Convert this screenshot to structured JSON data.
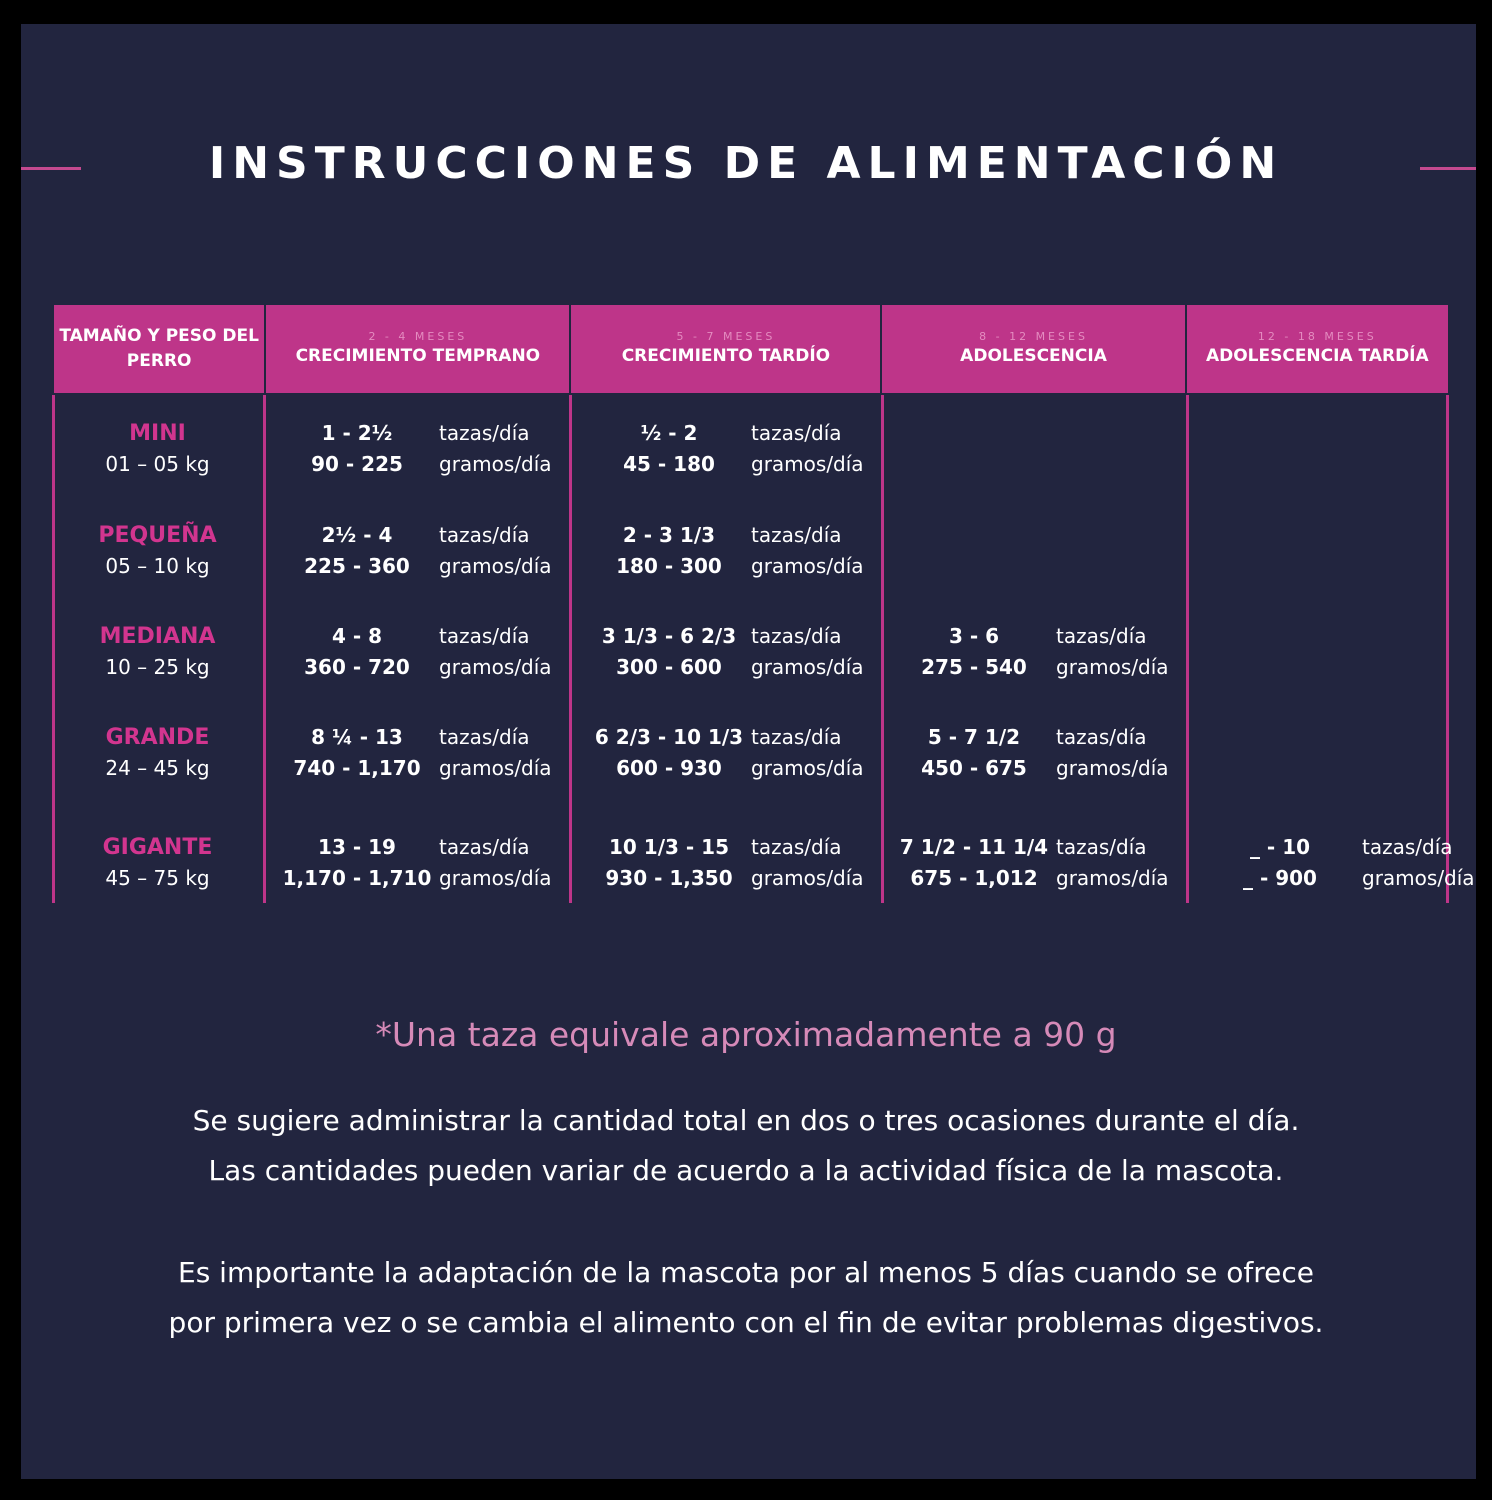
{
  "title": "INSTRUCCIONES DE ALIMENTACIÓN",
  "headers": [
    {
      "sub": "",
      "label": "TAMAÑO Y PESO DEL PERRO"
    },
    {
      "sub": "2 - 4 MESES",
      "label": "CRECIMIENTO TEMPRANO"
    },
    {
      "sub": "5 - 7 MESES",
      "label": "CRECIMIENTO TARDÍO"
    },
    {
      "sub": "8 - 12 MESES",
      "label": "ADOLESCENCIA"
    },
    {
      "sub": "12 - 18 MESES",
      "label": "ADOLESCENCIA TARDÍA"
    }
  ],
  "units": {
    "cups": "tazas/día",
    "grams": "gramos/día"
  },
  "rows": [
    {
      "name": "MINI",
      "weight": "01 – 05 kg",
      "cells": [
        {
          "cups": "1 - 2½",
          "grams": "90 - 225"
        },
        {
          "cups": "½ - 2",
          "grams": "45 - 180"
        },
        null,
        null
      ]
    },
    {
      "name": "PEQUEÑA",
      "weight": "05 – 10 kg",
      "cells": [
        {
          "cups": "2½ - 4",
          "grams": "225 - 360"
        },
        {
          "cups": "2 - 3 1/3",
          "grams": "180 - 300"
        },
        null,
        null
      ]
    },
    {
      "name": "MEDIANA",
      "weight": "10 – 25 kg",
      "cells": [
        {
          "cups": "4 - 8",
          "grams": "360 - 720"
        },
        {
          "cups": "3 1/3 - 6 2/3",
          "grams": "300 - 600"
        },
        {
          "cups": "3 - 6",
          "grams": "275 - 540"
        },
        null
      ]
    },
    {
      "name": "GRANDE",
      "weight": "24 – 45 kg",
      "cells": [
        {
          "cups": "8 ¼ - 13",
          "grams": "740 - 1,170"
        },
        {
          "cups": "6 2/3 - 10 1/3",
          "grams": "600 - 930"
        },
        {
          "cups": "5 - 7 1/2",
          "grams": "450 - 675"
        },
        null
      ]
    },
    {
      "name": "GIGANTE",
      "weight": "45 – 75 kg",
      "cells": [
        {
          "cups": "13 - 19",
          "grams": "1,170 - 1,710"
        },
        {
          "cups": "10 1/3 - 15",
          "grams": "930 - 1,350"
        },
        {
          "cups": "7 1/2 - 11 1/4",
          "grams": "675 - 1,012"
        },
        {
          "cups": "_ - 10",
          "grams": "_ - 900"
        }
      ]
    }
  ],
  "note": "*Una taza equivale aproximadamente a 90 g",
  "paragraphs": [
    [
      "Se sugiere administrar la cantidad total en dos o tres ocasiones durante el día.",
      "Las cantidades pueden variar de acuerdo a la actividad física de la mascota."
    ],
    [
      "Es importante la adaptación de la mascota por al menos 5 días cuando se ofrece",
      "por primera vez o se cambia el alimento con el fin de evitar problemas digestivos."
    ]
  ],
  "colors": {
    "background": "#22253f",
    "accent": "#be3589",
    "note": "#d68ab8"
  }
}
